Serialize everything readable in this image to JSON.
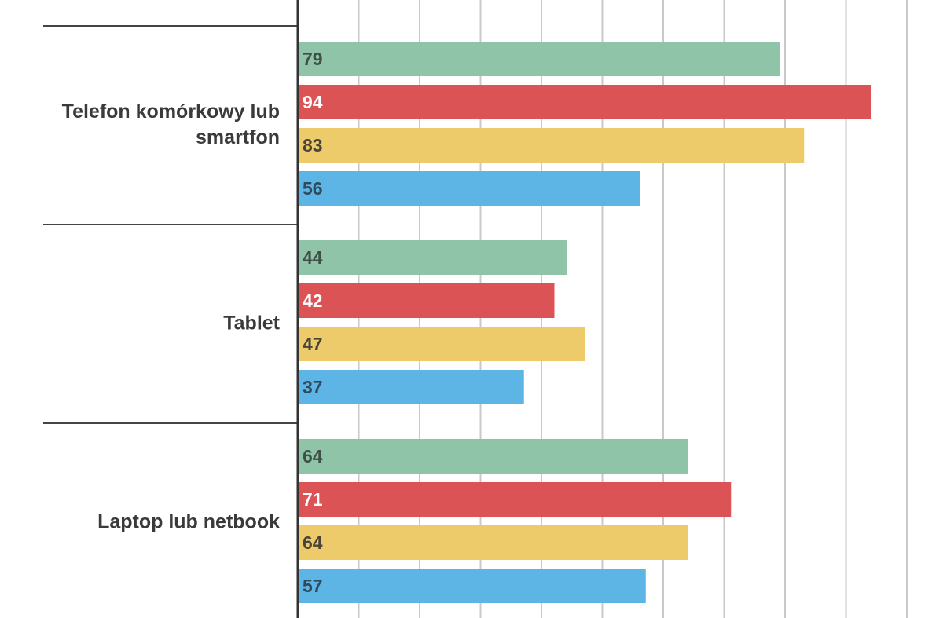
{
  "chart_data": {
    "type": "bar",
    "orientation": "horizontal",
    "title": "",
    "xlabel": "",
    "ylabel": "",
    "grid": true,
    "xlim": [
      0,
      100
    ],
    "categories": [
      {
        "lines": [
          "Telefon komórkowy lub",
          "smartfon"
        ]
      },
      {
        "lines": [
          "Tablet"
        ]
      },
      {
        "lines": [
          "Laptop lub netbook"
        ]
      }
    ],
    "series": [
      {
        "color": "#8fc4a8",
        "label_color": "#3f4f47",
        "values": [
          79,
          44,
          64
        ]
      },
      {
        "color": "#dc5356",
        "label_color": "#ffffff",
        "values": [
          94,
          42,
          71
        ]
      },
      {
        "color": "#eecb6a",
        "label_color": "#4a4538",
        "values": [
          83,
          47,
          64
        ]
      },
      {
        "color": "#5db5e6",
        "label_color": "#2e4a5c",
        "values": [
          56,
          37,
          57
        ]
      }
    ]
  }
}
